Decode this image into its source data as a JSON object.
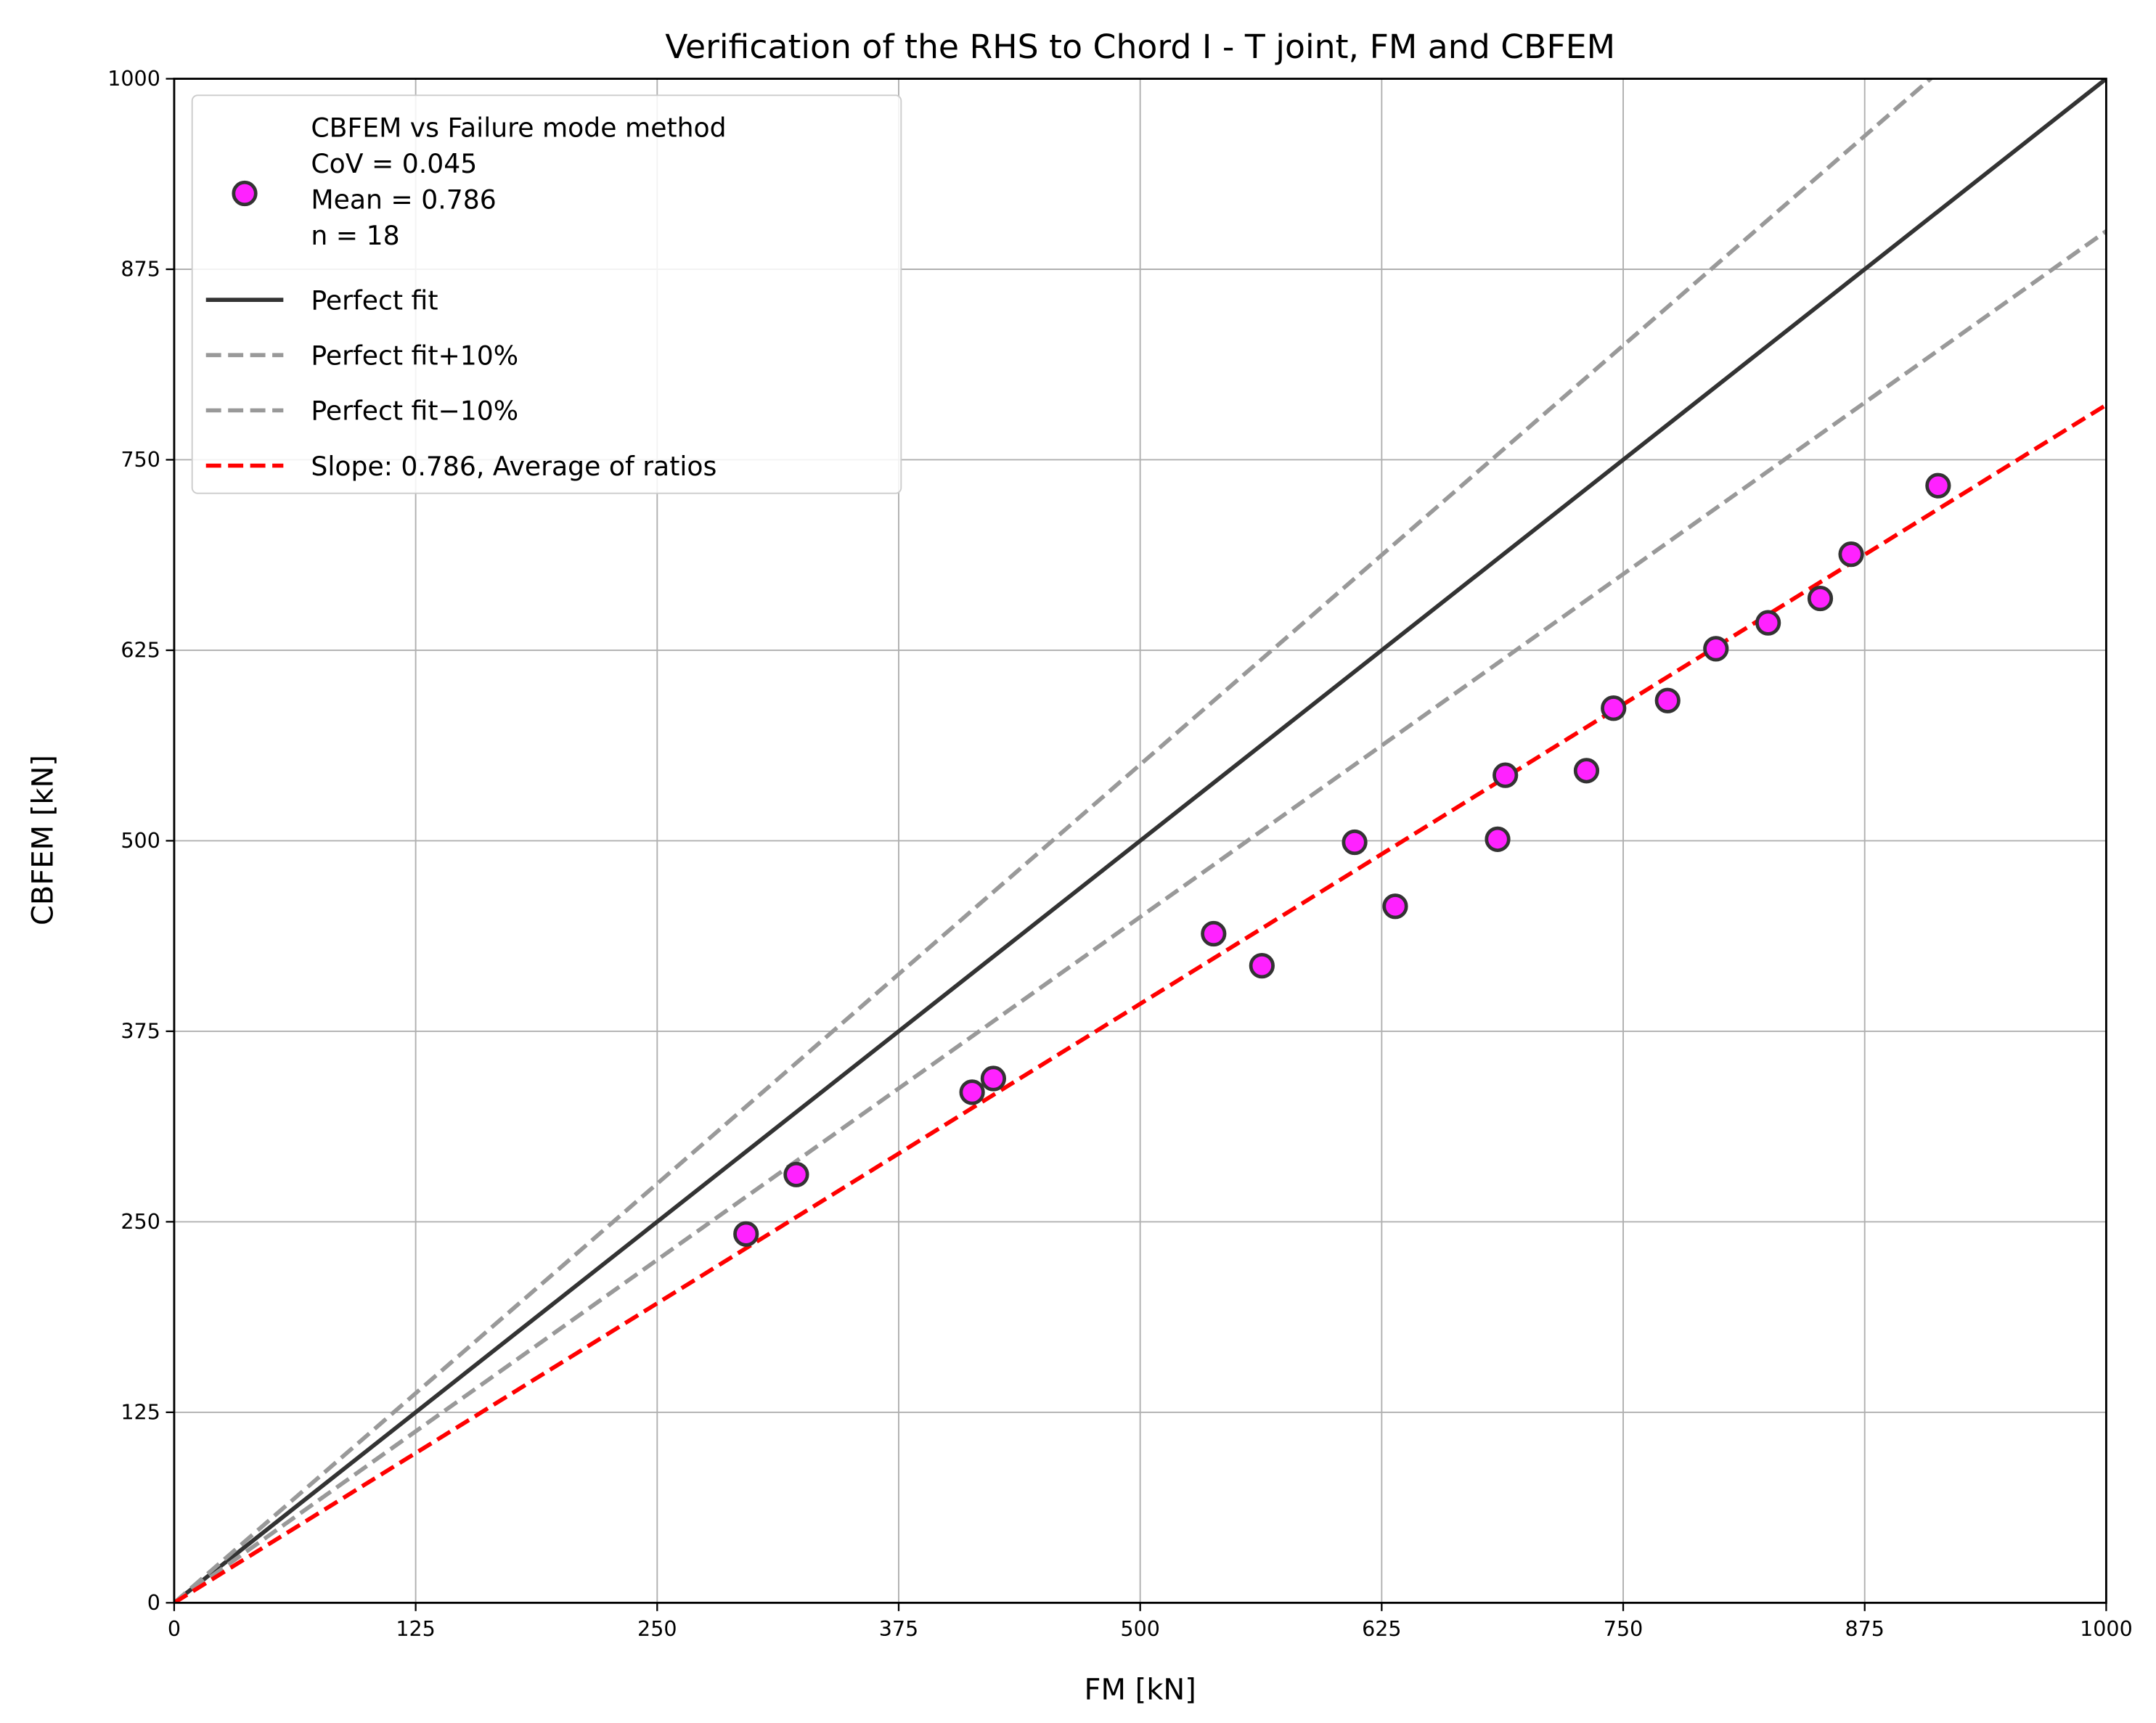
{
  "chart_data": {
    "type": "scatter",
    "title": "Verification of the RHS to Chord I - T joint, FM and CBFEM",
    "xlabel": "FM [kN]",
    "ylabel": "CBFEM [kN]",
    "xlim": [
      0,
      1000
    ],
    "ylim": [
      0,
      1000
    ],
    "xticks": [
      0,
      125,
      250,
      375,
      500,
      625,
      750,
      875,
      1000
    ],
    "yticks": [
      0,
      125,
      250,
      375,
      500,
      625,
      750,
      875,
      1000
    ],
    "grid": true,
    "legend_position": "top-left",
    "points": {
      "name": "CBFEM vs Failure mode method",
      "color": "#ff22ff",
      "x": [
        296,
        322,
        413,
        424,
        538,
        563,
        611,
        632,
        685,
        689,
        731,
        745,
        773,
        798,
        825,
        852,
        868,
        913
      ],
      "y": [
        242,
        281,
        335,
        344,
        439,
        418,
        499,
        457,
        501,
        543,
        546,
        587,
        592,
        626,
        643,
        659,
        688,
        733
      ]
    },
    "lines": [
      {
        "name": "Perfect fit",
        "slope": 1.0,
        "color": "#333333",
        "dash": false
      },
      {
        "name": "Perfect fit+10%",
        "slope": 1.1,
        "color": "#999999",
        "dash": true
      },
      {
        "name": "Perfect fit−10%",
        "slope": 0.9,
        "color": "#999999",
        "dash": true
      },
      {
        "name": "Slope: 0.786, Average of ratios",
        "slope": 0.786,
        "color": "#ff0000",
        "dash": true
      }
    ],
    "legend": {
      "scatter_lines": [
        "CBFEM vs Failure mode method",
        "CoV = 0.045",
        "Mean = 0.786",
        "n = 18"
      ]
    }
  }
}
